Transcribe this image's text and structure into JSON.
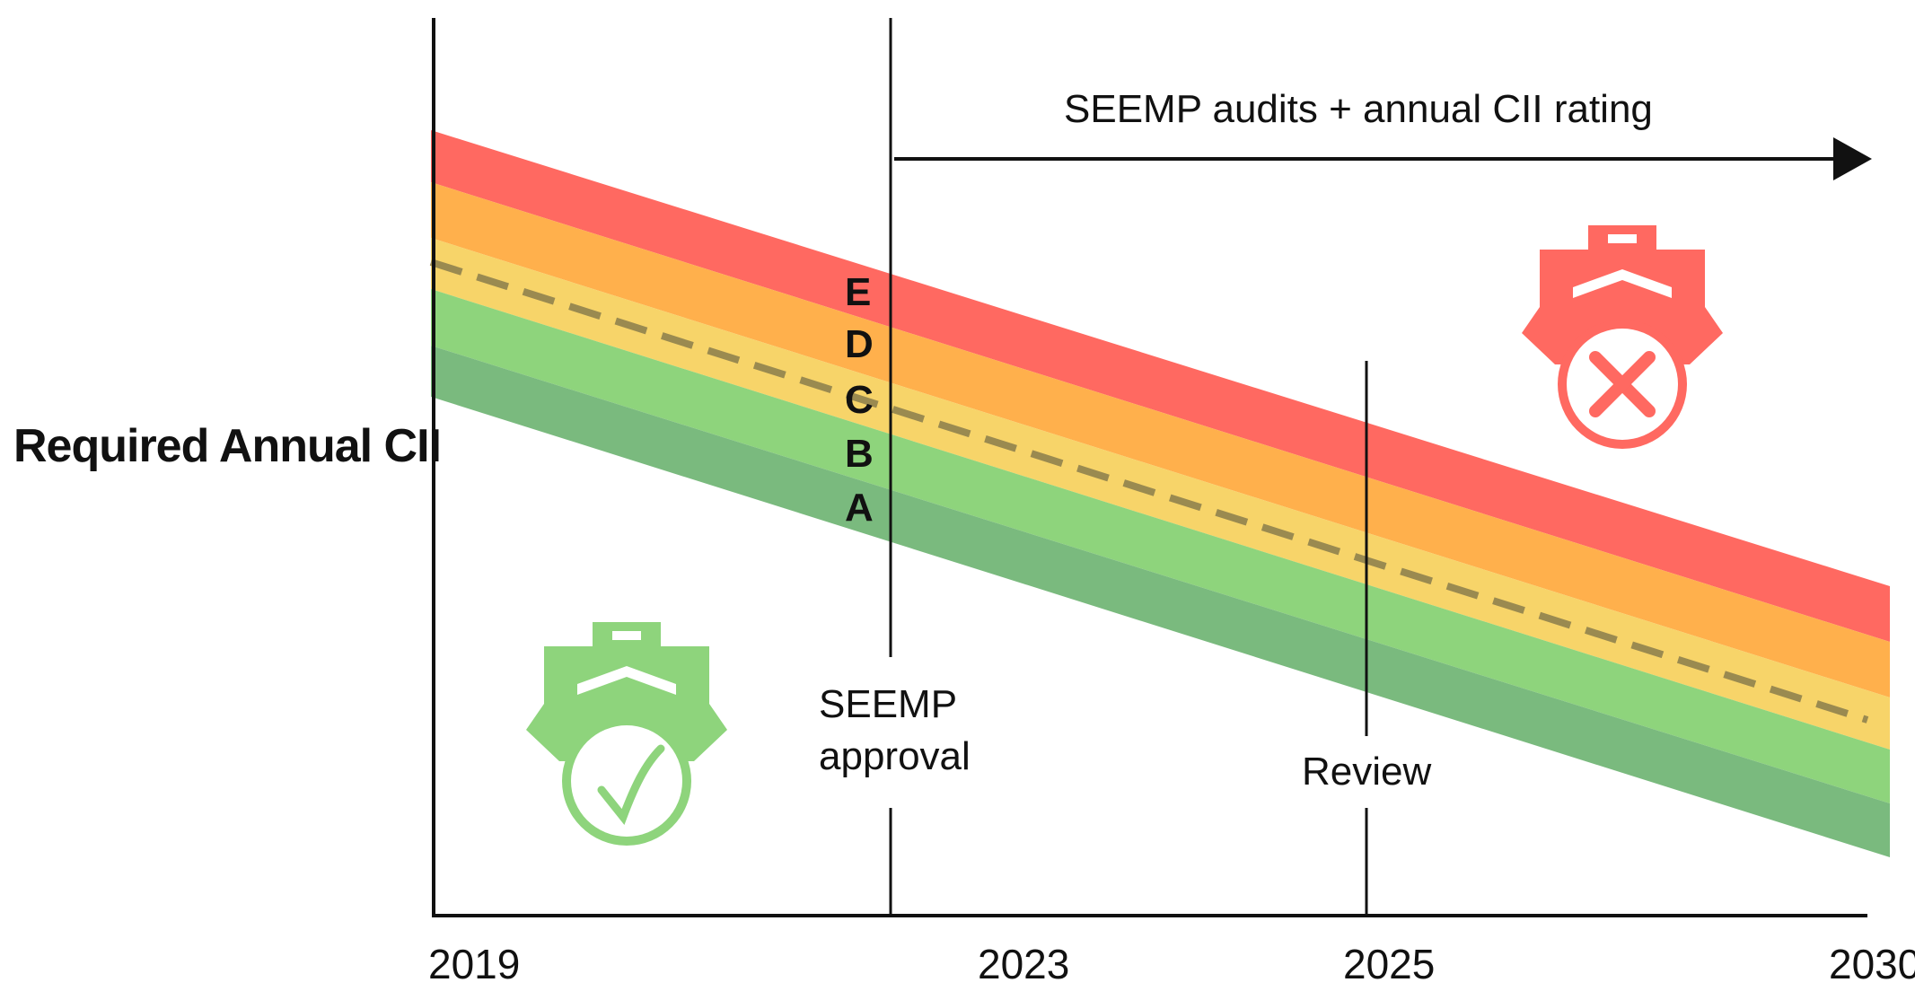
{
  "y_axis_label": "Required Annual CII",
  "x_axis": {
    "years": [
      "2019",
      "2023",
      "2025",
      "2030"
    ]
  },
  "timeline": {
    "seemp_approval_line1": "SEEMP",
    "seemp_approval_line2": "approval",
    "review_label": "Review",
    "arrow_label": "SEEMP audits + annual CII rating"
  },
  "ratings": [
    {
      "grade": "E",
      "color": "#ff6961"
    },
    {
      "grade": "D",
      "color": "#ffb04c"
    },
    {
      "grade": "C",
      "color": "#f7d469"
    },
    {
      "grade": "B",
      "color": "#8ed47c"
    },
    {
      "grade": "A",
      "color": "#7aba7e"
    }
  ],
  "colors": {
    "axis": "#111111",
    "dashed_line": "#9a8a50",
    "ship_ok": "#8ed47c",
    "ship_fail": "#ff6961"
  },
  "icons": {
    "compliant_ship": "ship-check-icon",
    "non_compliant_ship": "ship-cross-icon"
  }
}
